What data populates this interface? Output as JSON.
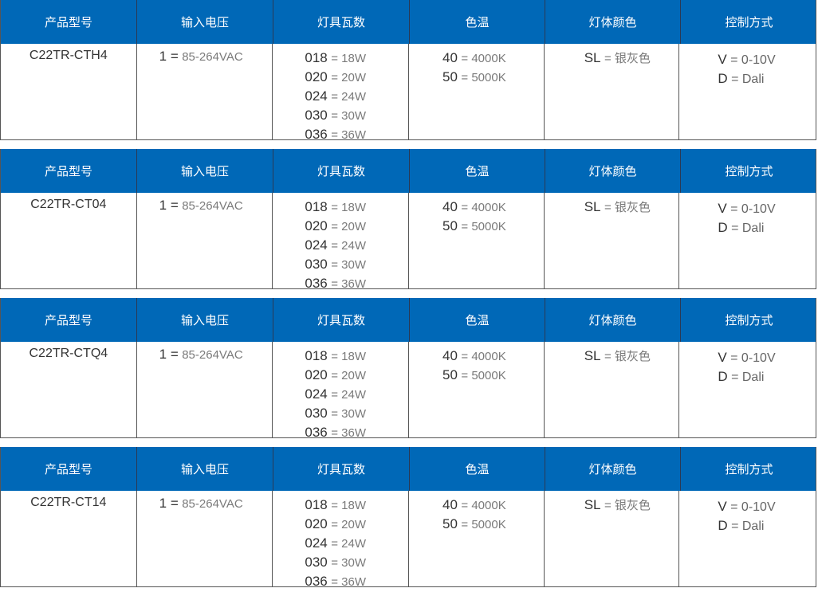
{
  "headers": [
    "产品型号",
    "输入电压",
    "灯具瓦数",
    "色温",
    "灯体颜色",
    "控制方式"
  ],
  "accent_color": "#0068b7",
  "tables": [
    {
      "model": "C22TR-CTH4",
      "voltage": {
        "code": "1 =",
        "value": "85-264VAC"
      },
      "wattage": [
        {
          "code": "018",
          "value": "= 18W"
        },
        {
          "code": "020",
          "value": "= 20W"
        },
        {
          "code": "024",
          "value": "= 24W"
        },
        {
          "code": "030",
          "value": "= 30W"
        },
        {
          "code": "036",
          "value": "= 36W"
        }
      ],
      "cct": [
        {
          "code": "40",
          "value": "= 4000K"
        },
        {
          "code": "50",
          "value": "= 5000K"
        }
      ],
      "color": [
        {
          "code": "SL",
          "value": "= 银灰色"
        }
      ],
      "control": [
        {
          "code": "V",
          "value": "= 0-10V"
        },
        {
          "code": "D",
          "value": "= Dali"
        }
      ]
    },
    {
      "model": "C22TR-CT04",
      "voltage": {
        "code": "1 =",
        "value": "85-264VAC"
      },
      "wattage": [
        {
          "code": "018",
          "value": "= 18W"
        },
        {
          "code": "020",
          "value": "= 20W"
        },
        {
          "code": "024",
          "value": "= 24W"
        },
        {
          "code": "030",
          "value": "= 30W"
        },
        {
          "code": "036",
          "value": "= 36W"
        }
      ],
      "cct": [
        {
          "code": "40",
          "value": "= 4000K"
        },
        {
          "code": "50",
          "value": "= 5000K"
        }
      ],
      "color": [
        {
          "code": "SL",
          "value": "= 银灰色"
        }
      ],
      "control": [
        {
          "code": "V",
          "value": "= 0-10V"
        },
        {
          "code": "D",
          "value": "= Dali"
        }
      ]
    },
    {
      "model": "C22TR-CTQ4",
      "voltage": {
        "code": "1 =",
        "value": "85-264VAC"
      },
      "wattage": [
        {
          "code": "018",
          "value": "= 18W"
        },
        {
          "code": "020",
          "value": "= 20W"
        },
        {
          "code": "024",
          "value": "= 24W"
        },
        {
          "code": "030",
          "value": "= 30W"
        },
        {
          "code": "036",
          "value": "= 36W"
        }
      ],
      "cct": [
        {
          "code": "40",
          "value": "= 4000K"
        },
        {
          "code": "50",
          "value": "= 5000K"
        }
      ],
      "color": [
        {
          "code": "SL",
          "value": "= 银灰色"
        }
      ],
      "control": [
        {
          "code": "V",
          "value": "= 0-10V"
        },
        {
          "code": "D",
          "value": "= Dali"
        }
      ]
    },
    {
      "model": "C22TR-CT14",
      "voltage": {
        "code": "1 =",
        "value": "85-264VAC"
      },
      "wattage": [
        {
          "code": "018",
          "value": "= 18W"
        },
        {
          "code": "020",
          "value": "= 20W"
        },
        {
          "code": "024",
          "value": "= 24W"
        },
        {
          "code": "030",
          "value": "= 30W"
        },
        {
          "code": "036",
          "value": "= 36W"
        }
      ],
      "cct": [
        {
          "code": "40",
          "value": "= 4000K"
        },
        {
          "code": "50",
          "value": "= 5000K"
        }
      ],
      "color": [
        {
          "code": "SL",
          "value": "= 银灰色"
        }
      ],
      "control": [
        {
          "code": "V",
          "value": "= 0-10V"
        },
        {
          "code": "D",
          "value": "= Dali"
        }
      ]
    }
  ]
}
